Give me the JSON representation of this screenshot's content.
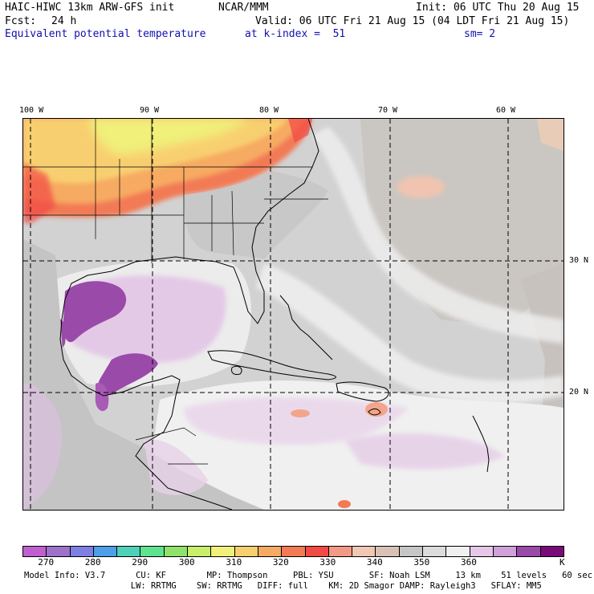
{
  "header": {
    "model": "HAIC-HIWC 13km ARW-GFS init",
    "org": "NCAR/MMM",
    "init": "Init: 06 UTC Thu 20 Aug 15",
    "fcst_label": "Fcst:",
    "fcst_value": "24 h",
    "valid": "Valid: 06 UTC Fri 21 Aug 15 (04 LDT Fri 21 Aug 15)",
    "field": "Equivalent potential temperature",
    "level": "at k-index =  51",
    "smooth": "sm= 2"
  },
  "axes": {
    "lon_labels": [
      "100 W",
      "90 W",
      "80 W",
      "70 W",
      "60 W"
    ],
    "lat_labels": [
      "30 N",
      "20 N"
    ]
  },
  "colorbar": {
    "colors": [
      "#c060d0",
      "#9f72c9",
      "#7f7fe3",
      "#4f9ee8",
      "#4fd1b8",
      "#5fe38f",
      "#8fe36a",
      "#c8ee6a",
      "#f0f07a",
      "#f8cf6f",
      "#f6aa62",
      "#f27a55",
      "#f24a45",
      "#f29a86",
      "#f0c8b3",
      "#d9c2b5",
      "#c6c6c6",
      "#dcdcdc",
      "#f0f0f0",
      "#e5c8e8",
      "#cfa0d9",
      "#9a4aa8",
      "#7a0a7a"
    ],
    "ticks": [
      "270",
      "280",
      "290",
      "300",
      "310",
      "320",
      "330",
      "340",
      "350",
      "360"
    ],
    "unit": "K"
  },
  "footer": {
    "line1": "Model Info: V3.7      CU: KF        MP: Thompson     PBL: YSU       SF: Noah LSM     13 km    51 levels   60 sec",
    "line2": "                     LW: RRTMG    SW: RRTMG   DIFF: full    KM: 2D Smagor DAMP: Rayleigh3   SFLAY: MM5"
  }
}
